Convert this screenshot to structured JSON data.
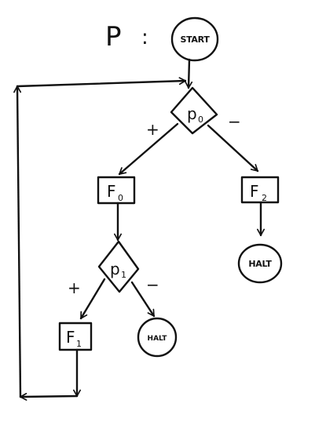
{
  "program": {
    "name": "P",
    "separator": ":"
  },
  "nodes": {
    "start": {
      "label": "START"
    },
    "p0": {
      "label": "p",
      "sub": "0"
    },
    "p1": {
      "label": "p",
      "sub": "1"
    },
    "f0": {
      "label": "F",
      "sub": "0"
    },
    "f1": {
      "label": "F",
      "sub": "1"
    },
    "f2": {
      "label": "F",
      "sub": "2"
    },
    "halt_right": {
      "label": "HALT"
    },
    "halt_left": {
      "label": "HALT"
    }
  },
  "edges": {
    "p0_plus": "+",
    "p0_minus": "−",
    "p1_plus": "+",
    "p1_minus": "−"
  }
}
